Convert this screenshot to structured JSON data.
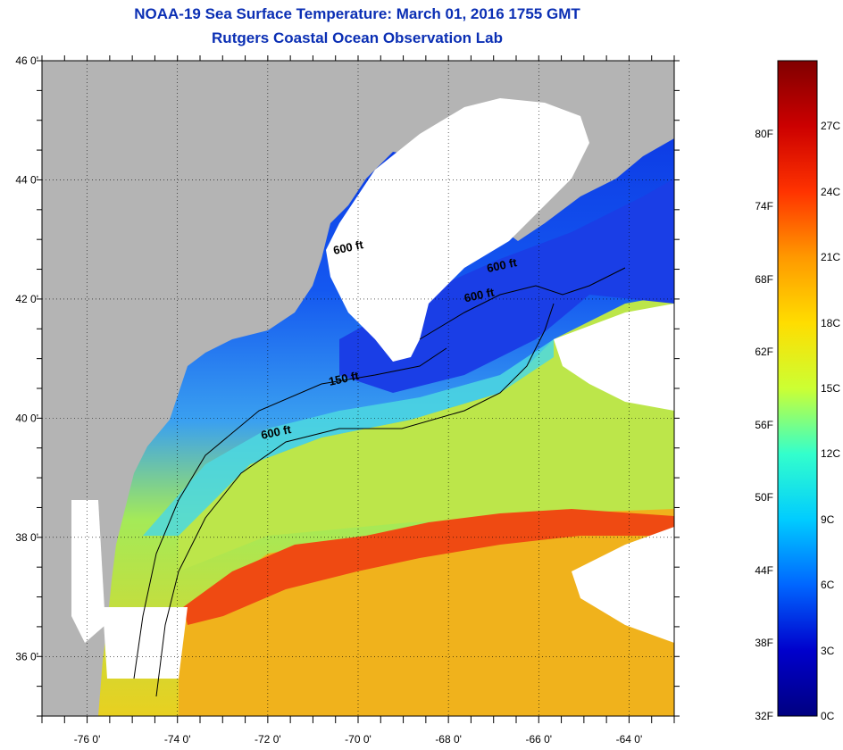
{
  "title": {
    "line1": "NOAA-19 Sea Surface Temperature:  March 01, 2016 1755 GMT",
    "line2": "Rutgers Coastal Ocean Observation Lab"
  },
  "map": {
    "lat_ticks": [
      {
        "value": 46,
        "label": "46 0'"
      },
      {
        "value": 44,
        "label": "44 0'"
      },
      {
        "value": 42,
        "label": "42 0'"
      },
      {
        "value": 40,
        "label": "40 0'"
      },
      {
        "value": 38,
        "label": "38 0'"
      },
      {
        "value": 36,
        "label": "36 0'"
      }
    ],
    "lon_ticks": [
      {
        "value": -76,
        "label": "-76 0'"
      },
      {
        "value": -74,
        "label": "-74 0'"
      },
      {
        "value": -72,
        "label": "-72 0'"
      },
      {
        "value": -70,
        "label": "-70 0'"
      },
      {
        "value": -68,
        "label": "-68 0'"
      },
      {
        "value": -66,
        "label": "-66 0'"
      },
      {
        "value": -64,
        "label": "-64 0'"
      }
    ],
    "lat_range": [
      35,
      46
    ],
    "lon_range": [
      -77,
      -63
    ],
    "contour_labels": [
      {
        "text": "600 ft",
        "lon": -70.2,
        "lat": 42.8
      },
      {
        "text": "600 ft",
        "lon": -66.8,
        "lat": 42.5
      },
      {
        "text": "600 ft",
        "lon": -67.3,
        "lat": 42.0
      },
      {
        "text": "150 ft",
        "lon": -70.3,
        "lat": 40.6
      },
      {
        "text": "600 ft",
        "lon": -71.8,
        "lat": 39.7
      }
    ],
    "colors": {
      "land": "#b4b4b4",
      "cloud": "#ffffff",
      "cold_water": "#0a2ee0",
      "cool_water": "#2aa0f0",
      "mid_water": "#b4ec3c",
      "warm_water": "#f0b418",
      "gulf_stream": "#f04010"
    }
  },
  "colorbar": {
    "fahrenheit": [
      "80F",
      "74F",
      "68F",
      "62F",
      "56F",
      "50F",
      "44F",
      "38F",
      "32F"
    ],
    "celsius": [
      "27C",
      "24C",
      "21C",
      "18C",
      "15C",
      "12C",
      "9C",
      "6C",
      "3C",
      "0C"
    ],
    "stops": [
      "#800000",
      "#cc0000",
      "#ff3300",
      "#ff9900",
      "#ffdd00",
      "#ccff33",
      "#33ffcc",
      "#00ccff",
      "#0066ff",
      "#0000cc",
      "#000080"
    ]
  }
}
